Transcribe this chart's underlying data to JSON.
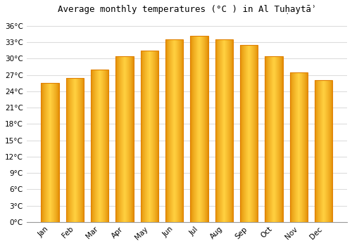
{
  "title": "Average monthly temperatures (°C ) in Al Tuḥaytāʾ",
  "months": [
    "Jan",
    "Feb",
    "Mar",
    "Apr",
    "May",
    "Jun",
    "Jul",
    "Aug",
    "Sep",
    "Oct",
    "Nov",
    "Dec"
  ],
  "values": [
    25.5,
    26.5,
    28.0,
    30.5,
    31.5,
    33.5,
    34.2,
    33.5,
    32.5,
    30.5,
    27.5,
    26.0
  ],
  "bar_color_center": "#FFD040",
  "bar_color_edge": "#E08000",
  "background_color": "#ffffff",
  "grid_color": "#dddddd",
  "yticks": [
    0,
    3,
    6,
    9,
    12,
    15,
    18,
    21,
    24,
    27,
    30,
    33,
    36
  ],
  "ylim": [
    0,
    37.5
  ],
  "title_fontsize": 9,
  "tick_fontsize": 7.5,
  "figsize": [
    5.0,
    3.5
  ],
  "dpi": 100
}
